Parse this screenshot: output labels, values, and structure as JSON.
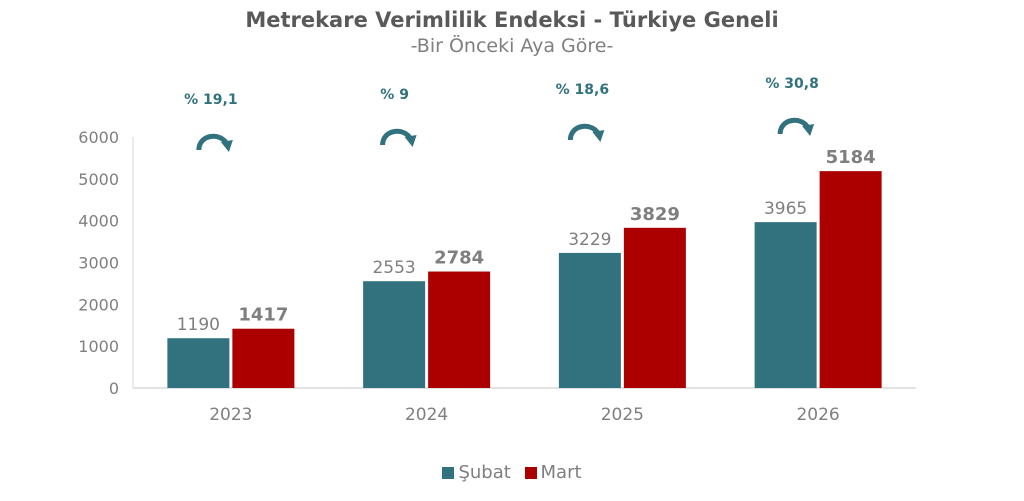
{
  "chart_data": {
    "type": "bar",
    "title": "Metrekare Verimlilik Endeksi - Türkiye Geneli",
    "subtitle": "-Bir Önceki Aya Göre-",
    "xlabel": "",
    "ylabel": "",
    "categories": [
      "2023",
      "2024",
      "2025",
      "2026"
    ],
    "series": [
      {
        "name": "Şubat",
        "color": "#31727E",
        "values": [
          1190,
          2553,
          3229,
          3965
        ]
      },
      {
        "name": "Mart",
        "color": "#AC0000",
        "values": [
          1417,
          2784,
          3829,
          5184
        ]
      }
    ],
    "ylim": [
      0,
      6000
    ],
    "yticks": [
      0,
      1000,
      2000,
      3000,
      4000,
      5000,
      6000
    ],
    "grid": false,
    "legend_position": "bottom",
    "annotations": [
      {
        "category": "2023",
        "text": "% 19,1",
        "icon": "curved-arrow-icon"
      },
      {
        "category": "2024",
        "text": "% 9",
        "icon": "curved-arrow-icon"
      },
      {
        "category": "2025",
        "text": "% 18,6",
        "icon": "curved-arrow-icon"
      },
      {
        "category": "2026",
        "text": "% 30,8",
        "icon": "curved-arrow-icon"
      }
    ]
  },
  "legend": {
    "items": [
      {
        "label": "Şubat",
        "color": "#31727E"
      },
      {
        "label": "Mart",
        "color": "#AC0000"
      }
    ]
  }
}
